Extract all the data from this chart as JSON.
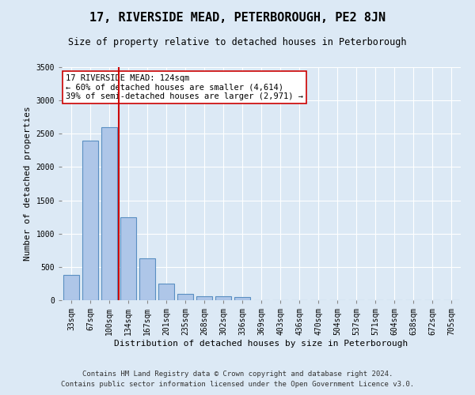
{
  "title": "17, RIVERSIDE MEAD, PETERBOROUGH, PE2 8JN",
  "subtitle": "Size of property relative to detached houses in Peterborough",
  "xlabel": "Distribution of detached houses by size in Peterborough",
  "ylabel": "Number of detached properties",
  "footnote1": "Contains HM Land Registry data © Crown copyright and database right 2024.",
  "footnote2": "Contains public sector information licensed under the Open Government Licence v3.0.",
  "categories": [
    "33sqm",
    "67sqm",
    "100sqm",
    "134sqm",
    "167sqm",
    "201sqm",
    "235sqm",
    "268sqm",
    "302sqm",
    "336sqm",
    "369sqm",
    "403sqm",
    "436sqm",
    "470sqm",
    "504sqm",
    "537sqm",
    "571sqm",
    "604sqm",
    "638sqm",
    "672sqm",
    "705sqm"
  ],
  "bar_values": [
    380,
    2400,
    2600,
    1250,
    630,
    250,
    100,
    60,
    55,
    50,
    0,
    0,
    0,
    0,
    0,
    0,
    0,
    0,
    0,
    0,
    0
  ],
  "bar_color": "#aec6e8",
  "bar_edge_color": "#5a8fc2",
  "red_line_x": 2.5,
  "vline_color": "#cc0000",
  "annotation_text": "17 RIVERSIDE MEAD: 124sqm\n← 60% of detached houses are smaller (4,614)\n39% of semi-detached houses are larger (2,971) →",
  "annotation_box_color": "#ffffff",
  "annotation_box_edge": "#cc0000",
  "ylim": [
    0,
    3500
  ],
  "yticks": [
    0,
    500,
    1000,
    1500,
    2000,
    2500,
    3000,
    3500
  ],
  "bg_color": "#dce9f5",
  "plot_bg_color": "#dce9f5",
  "grid_color": "#ffffff",
  "title_fontsize": 11,
  "subtitle_fontsize": 8.5,
  "ylabel_fontsize": 8,
  "xlabel_fontsize": 8,
  "tick_fontsize": 7,
  "footnote_fontsize": 6.5
}
